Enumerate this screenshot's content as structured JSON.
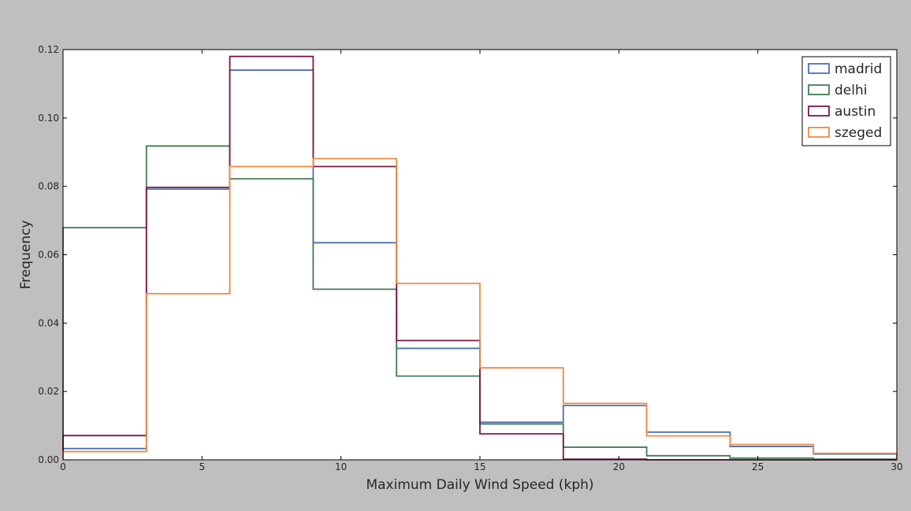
{
  "chart_data": {
    "type": "histogram-step",
    "title": "",
    "xlabel": "Maximum Daily Wind Speed (kph)",
    "ylabel": "Frequency",
    "xlim": [
      0,
      30
    ],
    "ylim": [
      0,
      0.12
    ],
    "xticks": [
      0,
      5,
      10,
      15,
      20,
      25,
      30
    ],
    "xtick_labels": [
      "0",
      "5",
      "10",
      "15",
      "20",
      "25",
      "30"
    ],
    "yticks": [
      0.0,
      0.02,
      0.04,
      0.06,
      0.08,
      0.1,
      0.12
    ],
    "ytick_labels": [
      "0.00",
      "0.02",
      "0.04",
      "0.06",
      "0.08",
      "0.10",
      "0.12"
    ],
    "bin_edges": [
      0,
      3,
      6,
      9,
      12,
      15,
      18,
      21,
      24,
      27,
      30
    ],
    "legend_position": "top-right",
    "grid": false,
    "series": [
      {
        "name": "madrid",
        "color": "#4c72b0",
        "values": [
          0.0033,
          0.0792,
          0.114,
          0.0635,
          0.0326,
          0.011,
          0.0159,
          0.0081,
          0.0039,
          0.0017
        ]
      },
      {
        "name": "delhi",
        "color": "#467a52",
        "values": [
          0.0679,
          0.0918,
          0.0822,
          0.0499,
          0.0245,
          0.0105,
          0.0037,
          0.0012,
          0.0005,
          0.0002
        ]
      },
      {
        "name": "austin",
        "color": "#7b1a4c",
        "values": [
          0.0071,
          0.0797,
          0.118,
          0.0858,
          0.0349,
          0.0076,
          0.0002,
          0.0,
          0.0,
          0.0
        ]
      },
      {
        "name": "szeged",
        "color": "#ee8a3f",
        "values": [
          0.0024,
          0.0486,
          0.0858,
          0.0881,
          0.0516,
          0.0269,
          0.0165,
          0.007,
          0.0045,
          0.0019
        ]
      }
    ]
  }
}
